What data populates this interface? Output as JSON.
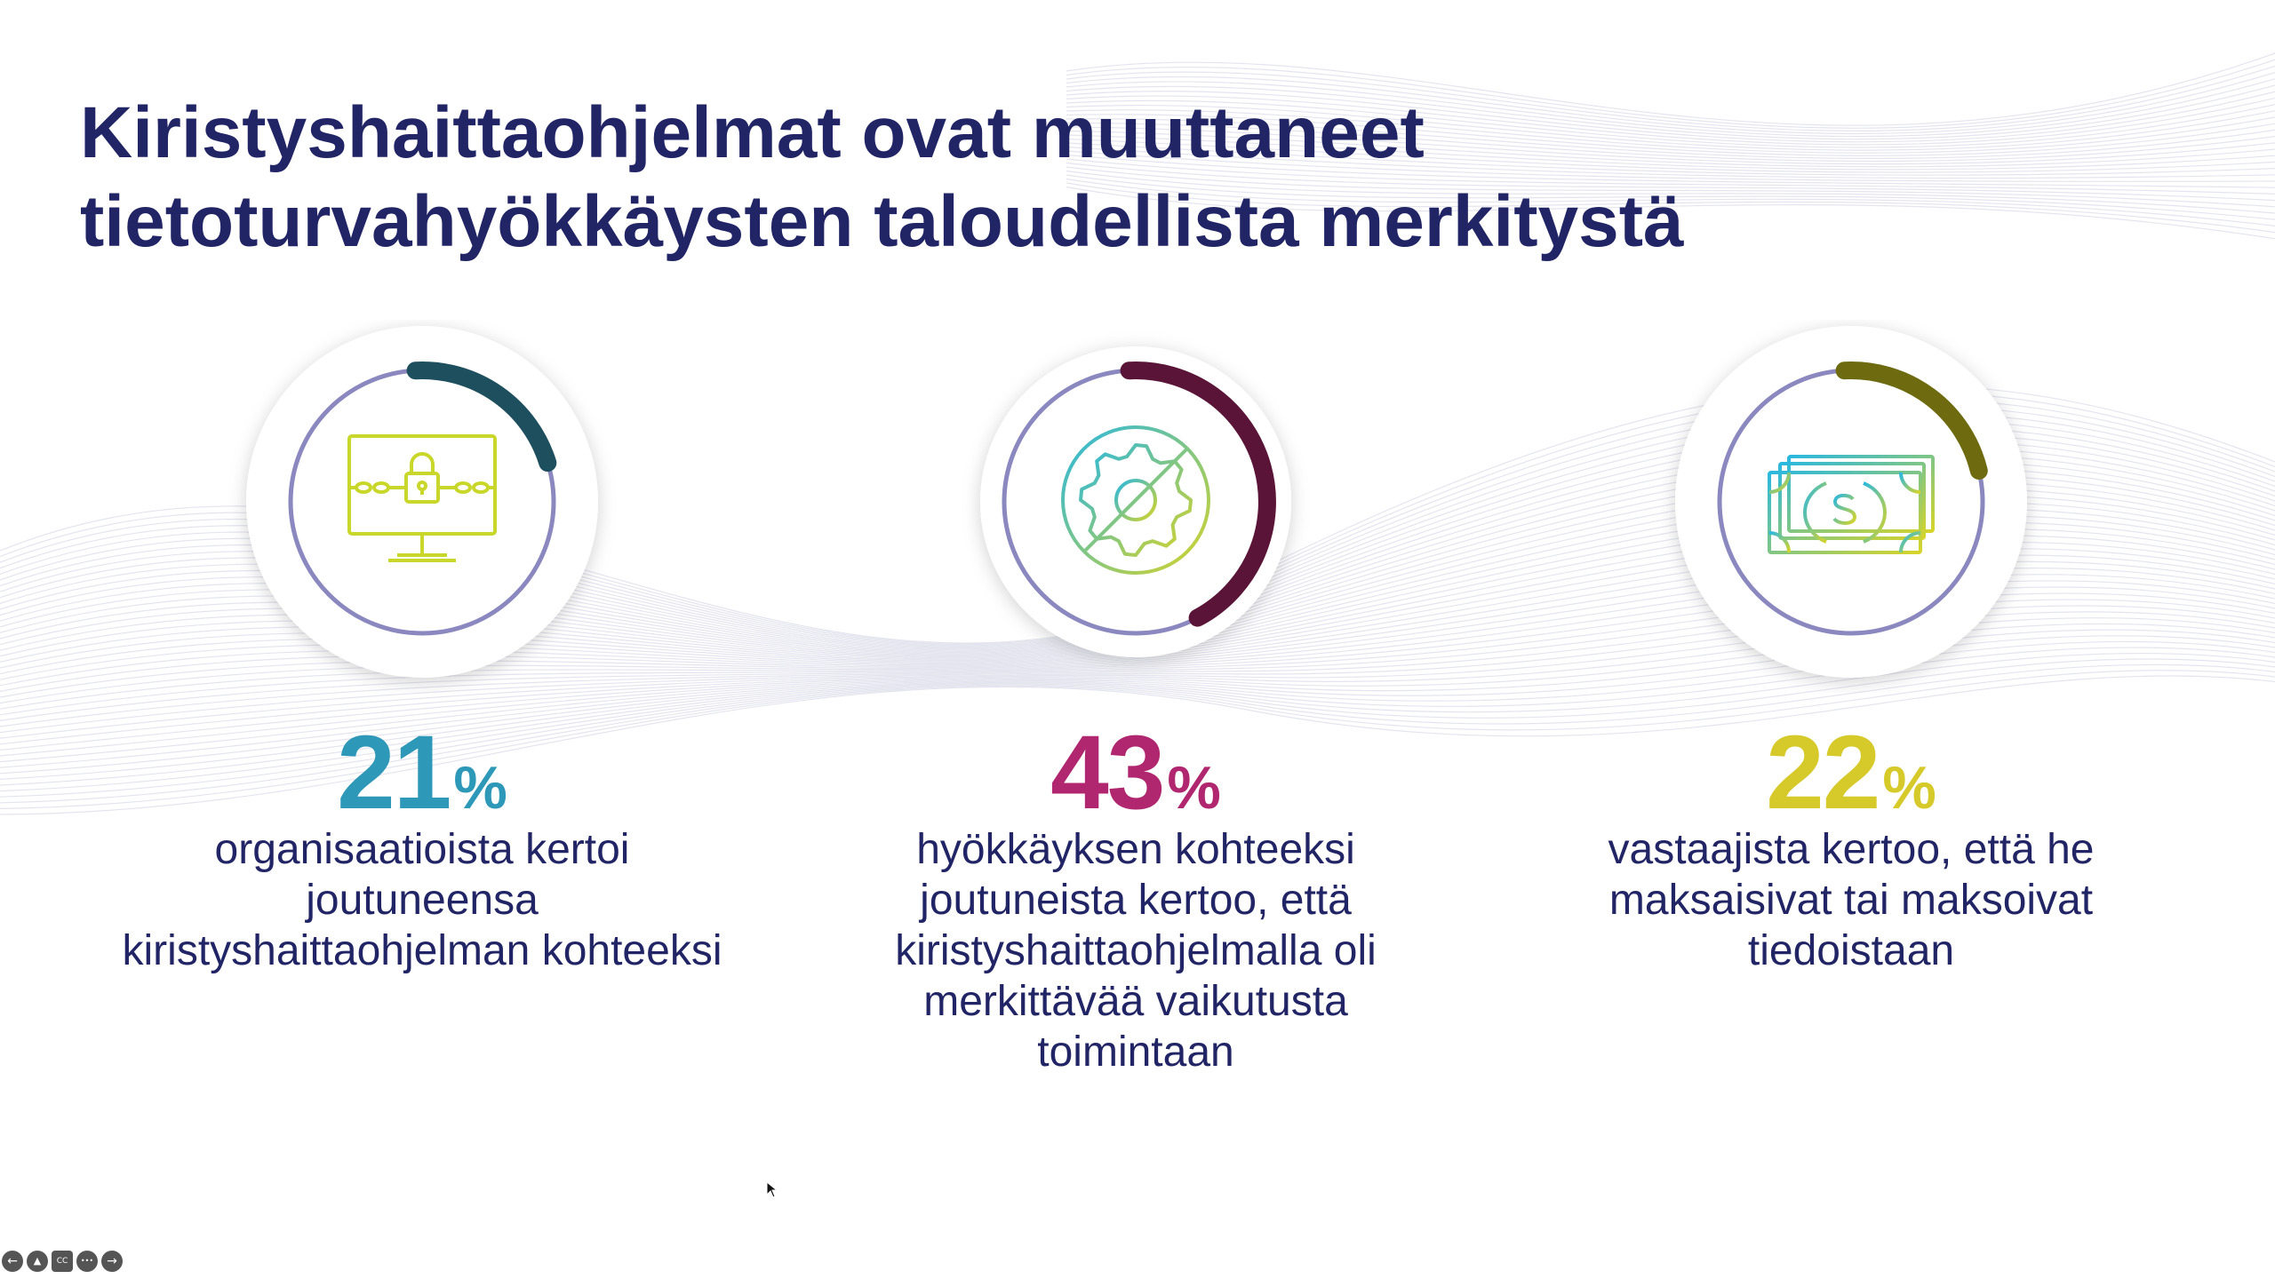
{
  "slide": {
    "title_line1": "Kiristyshaittaohjelmat ovat muuttaneet",
    "title_line2": "tietoturvahyökkäysten taloudellista merkitystä"
  },
  "stats": [
    {
      "icon": "locked-computer-icon",
      "number": "21",
      "suffix": "%",
      "value": 0.21,
      "color": "#2e98b8",
      "arc_color": "#1e4f5e",
      "desc_lines": [
        "organisaatioista kertoi",
        "joutuneensa",
        "kiristyshaittaohjelman kohteeksi"
      ]
    },
    {
      "icon": "disabled-gear-icon",
      "number": "43",
      "suffix": "%",
      "value": 0.43,
      "color": "#b0276f",
      "arc_color": "#5a1438",
      "desc_lines": [
        "hyökkäyksen kohteeksi",
        "joutuneista kertoo, että",
        "kiristyshaittaohjelmalla oli",
        "merkittävää vaikutusta",
        "toimintaan"
      ]
    },
    {
      "icon": "dollar-bills-icon",
      "number": "22",
      "suffix": "%",
      "value": 0.22,
      "color": "#d6c92a",
      "arc_color": "#6e6a10",
      "desc_lines": [
        "vastaajista kertoo, että he",
        "maksaisivat tai maksoivat",
        "tiedoistaan"
      ]
    }
  ],
  "controls": {
    "prev": "←",
    "pen": "▲",
    "cc": "CC",
    "more": "•••",
    "next": "→"
  },
  "colors": {
    "title": "#222565",
    "ring": "#8a88bf"
  }
}
